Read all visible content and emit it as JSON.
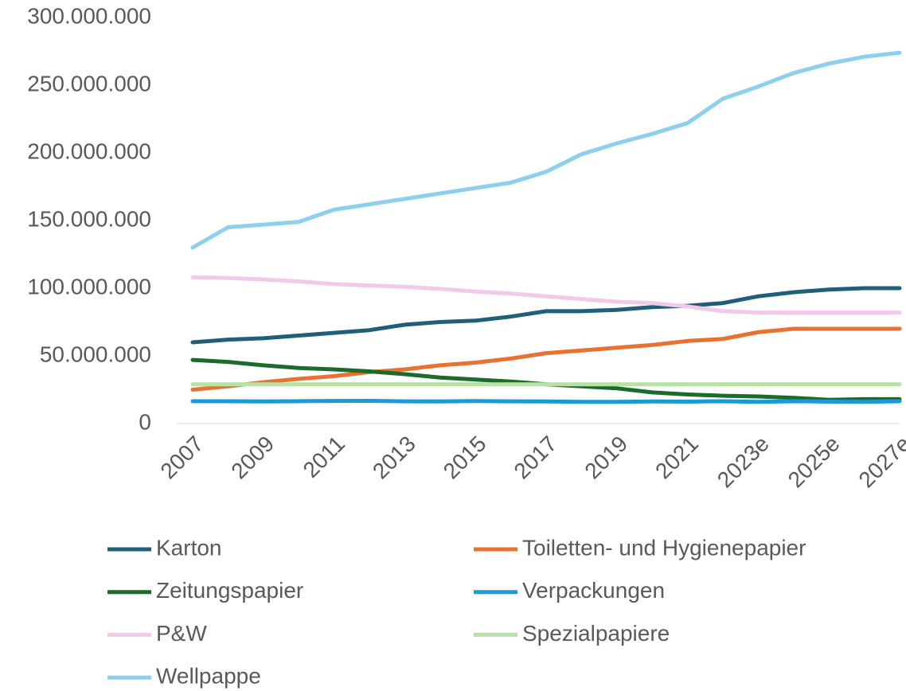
{
  "chart_data": {
    "type": "line",
    "categories": [
      "2007",
      null,
      "2009",
      null,
      "2011",
      null,
      "2013",
      null,
      "2015",
      null,
      "2017",
      null,
      "2019",
      null,
      "2021",
      null,
      "2023e",
      null,
      "2025e",
      null,
      "2027e"
    ],
    "series": [
      {
        "name": "Karton",
        "color": "#1f5f7a",
        "values": [
          60000000,
          62000000,
          63000000,
          65000000,
          67000000,
          69000000,
          73000000,
          75000000,
          76000000,
          79000000,
          83000000,
          83000000,
          84000000,
          86000000,
          87000000,
          89000000,
          94000000,
          97000000,
          99000000,
          100000000,
          100000000
        ]
      },
      {
        "name": "Toiletten- und Hygienepapier",
        "color": "#e97132",
        "values": [
          25000000,
          27500000,
          30500000,
          33000000,
          35000000,
          38000000,
          40000000,
          43000000,
          45000000,
          48000000,
          52000000,
          54000000,
          56000000,
          58000000,
          61000000,
          62500000,
          67500000,
          70000000,
          70000000,
          70000000,
          70000000
        ]
      },
      {
        "name": "Zeitungspapier",
        "color": "#1b6b2a",
        "values": [
          47000000,
          45500000,
          43000000,
          41000000,
          40000000,
          38500000,
          36500000,
          34000000,
          32500000,
          31000000,
          29000000,
          27500000,
          26000000,
          23000000,
          21500000,
          20500000,
          20000000,
          19000000,
          17500000,
          18000000,
          18000000
        ]
      },
      {
        "name": "Verpackungen",
        "color": "#1a9bd7",
        "values": [
          16500000,
          16500000,
          16300000,
          16500000,
          16700000,
          16800000,
          16400000,
          16300000,
          16600000,
          16400000,
          16300000,
          16000000,
          16000000,
          16300000,
          16200000,
          16500000,
          16000000,
          16500000,
          16200000,
          16000000,
          16500000
        ]
      },
      {
        "name": "P&W",
        "color": "#f2c9ea",
        "values": [
          108000000,
          107600000,
          106500000,
          105000000,
          103000000,
          102000000,
          101000000,
          99500000,
          97600000,
          96000000,
          94000000,
          92000000,
          90000000,
          89000000,
          86500000,
          83000000,
          82000000,
          82000000,
          82000000,
          82000000,
          82000000
        ]
      },
      {
        "name": "Spezialpapiere",
        "color": "#b6e2a6",
        "values": [
          29000000,
          29000000,
          29000000,
          29000000,
          29000000,
          29000000,
          29000000,
          29000000,
          29000000,
          29000000,
          29000000,
          29000000,
          29000000,
          29000000,
          29000000,
          29000000,
          29000000,
          29000000,
          29000000,
          29000000,
          29000000
        ]
      },
      {
        "name": "Wellpappe",
        "color": "#8ccfee",
        "values": [
          130000000,
          145000000,
          147000000,
          149000000,
          158000000,
          162000000,
          166000000,
          170000000,
          174000000,
          178000000,
          186000000,
          199000000,
          207000000,
          214000000,
          222000000,
          240000000,
          249000000,
          259000000,
          266000000,
          271000000,
          274000000
        ]
      }
    ],
    "ylim": [
      0,
      300000000
    ],
    "yticks": [
      0,
      {
        "value": 50000000,
        "label": "50.000.000"
      },
      {
        "value": 100000000,
        "label": "100.000.000"
      },
      {
        "value": 150000000,
        "label": "150.000.000"
      },
      {
        "value": 200000000,
        "label": "200.000.000"
      },
      {
        "value": 250000000,
        "label": "250.000.000"
      },
      {
        "value": 300000000,
        "label": "300.000.000"
      }
    ],
    "grid": false
  }
}
